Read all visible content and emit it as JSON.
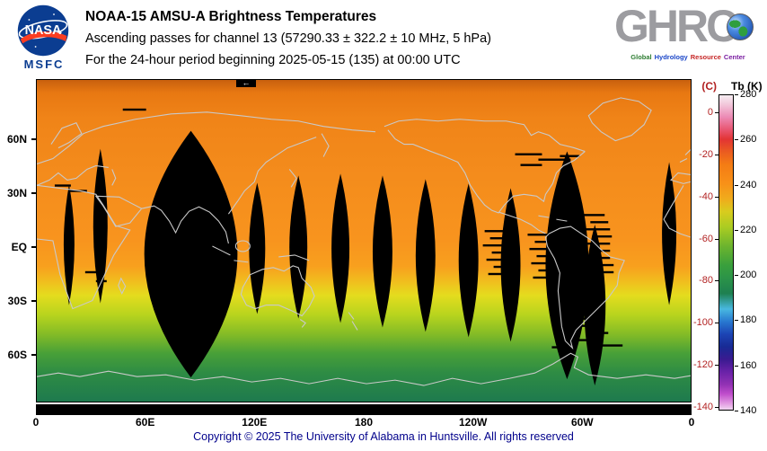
{
  "header": {
    "nasa": {
      "text": "NASA",
      "msfc": "MSFC"
    },
    "title": "NOAA-15 AMSU-A Brightness Temperatures",
    "subtitle1": "Ascending passes for channel 13 (57290.33 ± 322.2 ± 10 MHz, 5 hPa)",
    "subtitle2": "For the 24-hour period beginning 2025-05-15 (135) at 00:00 UTC",
    "ghrc": {
      "letters": "GHRC",
      "tagline": [
        "Global",
        "Hydrology",
        "Resource",
        "Center"
      ],
      "tagline_colors": [
        "#2e7d32",
        "#1a46c8",
        "#c62828",
        "#7b1fa2"
      ]
    }
  },
  "map": {
    "lat_labels": [
      "60N",
      "30N",
      "EQ",
      "30S",
      "60S"
    ],
    "lon_labels": [
      "0",
      "60E",
      "120E",
      "180",
      "120W",
      "60W",
      "0"
    ],
    "start_marker": "←",
    "coastline_color": "#c9c9c9",
    "gradient_stops": [
      [
        0,
        "#c8600e"
      ],
      [
        4,
        "#e87812"
      ],
      [
        12,
        "#f08418"
      ],
      [
        30,
        "#f48c1c"
      ],
      [
        50,
        "#f8941e"
      ],
      [
        58,
        "#f8a01e"
      ],
      [
        63,
        "#f0c01e"
      ],
      [
        67,
        "#e4dc1e"
      ],
      [
        73,
        "#b8d41e"
      ],
      [
        79,
        "#84bc26"
      ],
      [
        85,
        "#48a038"
      ],
      [
        91,
        "#2e8c44"
      ],
      [
        100,
        "#1e7a4e"
      ]
    ],
    "no_data_swaths": [
      [
        36,
        117,
        252,
        6
      ],
      [
        71,
        77,
        250,
        8
      ],
      [
        172,
        57,
        333,
        52
      ],
      [
        246,
        115,
        262,
        9
      ],
      [
        292,
        107,
        267,
        10
      ],
      [
        339,
        105,
        272,
        10
      ],
      [
        386,
        107,
        277,
        11
      ],
      [
        434,
        111,
        282,
        11
      ],
      [
        482,
        116,
        288,
        11
      ],
      [
        529,
        121,
        293,
        11
      ],
      [
        592,
        80,
        335,
        24
      ],
      [
        623,
        162,
        342,
        12
      ],
      [
        706,
        92,
        252,
        8
      ]
    ],
    "no_data_dashes": [
      [
        500,
        168,
        26
      ],
      [
        506,
        176,
        20
      ],
      [
        498,
        184,
        30
      ],
      [
        508,
        192,
        22
      ],
      [
        502,
        200,
        28
      ],
      [
        510,
        208,
        18
      ],
      [
        504,
        216,
        24
      ],
      [
        548,
        172,
        22
      ],
      [
        556,
        180,
        26
      ],
      [
        550,
        188,
        20
      ],
      [
        558,
        196,
        24
      ],
      [
        552,
        204,
        26
      ],
      [
        560,
        212,
        18
      ],
      [
        554,
        220,
        22
      ],
      [
        610,
        150,
        24
      ],
      [
        618,
        158,
        20
      ],
      [
        612,
        166,
        28
      ],
      [
        620,
        174,
        22
      ],
      [
        614,
        182,
        26
      ],
      [
        622,
        190,
        18
      ],
      [
        616,
        198,
        24
      ],
      [
        624,
        206,
        20
      ],
      [
        618,
        214,
        26
      ],
      [
        534,
        82,
        30
      ],
      [
        560,
        88,
        36
      ],
      [
        540,
        94,
        24
      ],
      [
        584,
        84,
        22
      ],
      [
        570,
        242,
        20
      ],
      [
        600,
        250,
        26
      ],
      [
        580,
        258,
        18
      ],
      [
        610,
        266,
        22
      ],
      [
        590,
        274,
        24
      ],
      [
        620,
        282,
        18
      ],
      [
        600,
        290,
        22
      ],
      [
        575,
        298,
        20
      ],
      [
        630,
        296,
        24
      ],
      [
        20,
        117,
        18
      ],
      [
        36,
        123,
        20
      ],
      [
        96,
        32,
        26
      ],
      [
        54,
        214,
        14
      ],
      [
        66,
        224,
        12
      ]
    ]
  },
  "colorbar": {
    "unit_left": "(C)",
    "unit_right": "Tb (K)",
    "c_ticks": [
      "0",
      "-20",
      "-40",
      "-60",
      "-80",
      "-100",
      "-120",
      "-140"
    ],
    "k_ticks": [
      "280",
      "260",
      "240",
      "220",
      "200",
      "180",
      "160",
      "140"
    ],
    "gradient_stops": [
      [
        0,
        "#f6eef2"
      ],
      [
        3,
        "#f2c6da"
      ],
      [
        7,
        "#ec8ab4"
      ],
      [
        11,
        "#e85570"
      ],
      [
        14,
        "#e23434"
      ],
      [
        18,
        "#ea5c20"
      ],
      [
        22,
        "#f47c14"
      ],
      [
        28,
        "#f89018"
      ],
      [
        33,
        "#f0ac1c"
      ],
      [
        37,
        "#d8cc1e"
      ],
      [
        42,
        "#aacc22"
      ],
      [
        48,
        "#6cb42e"
      ],
      [
        54,
        "#3aa03c"
      ],
      [
        58,
        "#2c9448"
      ],
      [
        63,
        "#1e8050"
      ],
      [
        68,
        "#48b8e0"
      ],
      [
        72,
        "#2878d0"
      ],
      [
        76,
        "#1c44b4"
      ],
      [
        80,
        "#182a94"
      ],
      [
        84,
        "#3a1a90"
      ],
      [
        88,
        "#6a22a8"
      ],
      [
        92,
        "#9232b4"
      ],
      [
        95,
        "#c04ecc"
      ],
      [
        98,
        "#e29ae2"
      ],
      [
        100,
        "#f0d4f0"
      ]
    ]
  },
  "footer": {
    "copyright": "Copyright © 2025 The University of Alabama in Huntsville.  All rights reserved"
  }
}
